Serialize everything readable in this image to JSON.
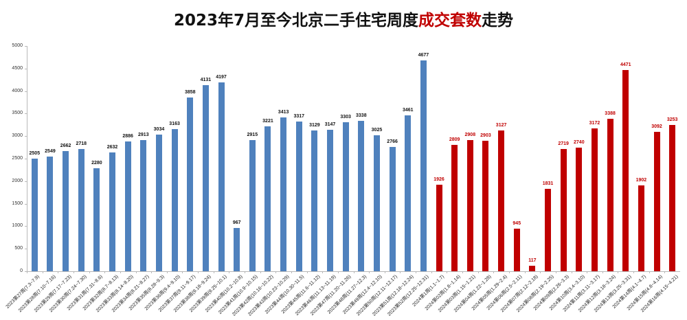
{
  "title": {
    "prefix": "2023年7月至今北京二手住宅周度",
    "highlight": "成交套数",
    "suffix": "走势"
  },
  "colors": {
    "series_2023": "#4f81bd",
    "series_2024": "#c00000",
    "title_highlight": "#c00000"
  },
  "chart_data": {
    "type": "bar",
    "title": "2023年7月至今北京二手住宅周度成交套数走势",
    "xlabel": "",
    "ylabel": "",
    "ylim": [
      0,
      5000
    ],
    "yticks": [
      0,
      500,
      1000,
      1500,
      2000,
      2500,
      3000,
      3500,
      4000,
      4500,
      5000
    ],
    "grid": false,
    "legend": null,
    "categories": [
      "2023第27周(7.3~7.9)",
      "2023第28周(7.10~7.16)",
      "2023第29周(7.17~7.23)",
      "2023第30周(7.24~7.30)",
      "2023第31周(7.31~8.6)",
      "2023第32周(8.7~8.13)",
      "2023第33周(8.14~8.20)",
      "2023第34周(8.21~8.27)",
      "2023第35周(8.28~9.3)",
      "2023第36周(9.4~9.10)",
      "2023第37周(9.11~9.17)",
      "2023第38周(9.18~9.24)",
      "2023第39周(9.25~10.1)",
      "2023第40周(10.2~10.8)",
      "2023第41周(10.9~10.15)",
      "2023第42周(10.16~10.22)",
      "2023第43周(10.23~10.29)",
      "2023第44周(10.30~11.5)",
      "2023第45周(11.6~11.12)",
      "2023第46周(11.13~11.19)",
      "2023第47周(11.20~11.26)",
      "2023第48周(11.27~12.3)",
      "2023第49周(12.4~12.10)",
      "2023第50周(12.11~12.17)",
      "2023第51周(12.18~12.24)",
      "2023第52周(12.25~12.31)",
      "2024第1周(1.1~1.7)",
      "2024第02周(1.8~1.14)",
      "2024第03周(1.15~1.21)",
      "2024第04周(1.22~1.28)",
      "2024第05周(1.29~2.4)",
      "2024第06周(2.5~2.11)",
      "2024第07周(2.12~2.18)",
      "2024第08周(2.19~2.25)",
      "2024第09周(2.26~3.3)",
      "2024第10周(3.4~3.10)",
      "2024第11周(3.11~3.17)",
      "2024第12周(3.18~3.24)",
      "2024第13周(3.25~3.31)",
      "2024第14周(4.1~4.7)",
      "2024第15周(4.8~4.14)",
      "2024第16周(4.15~4.21)"
    ],
    "series": [
      {
        "name": "2023",
        "color": "#4f81bd",
        "values": [
          2505,
          2549,
          2662,
          2718,
          2280,
          2632,
          2886,
          2913,
          3034,
          3163,
          3858,
          4131,
          4197,
          967,
          2915,
          3221,
          3413,
          3317,
          3129,
          3147,
          3303,
          3338,
          3025,
          2766,
          3461,
          4677
        ]
      },
      {
        "name": "2024",
        "color": "#c00000",
        "values": [
          1926,
          2809,
          2908,
          2903,
          3127,
          945,
          117,
          1831,
          2719,
          2740,
          3172,
          3388,
          4471,
          1902,
          3092,
          3253
        ]
      }
    ]
  }
}
